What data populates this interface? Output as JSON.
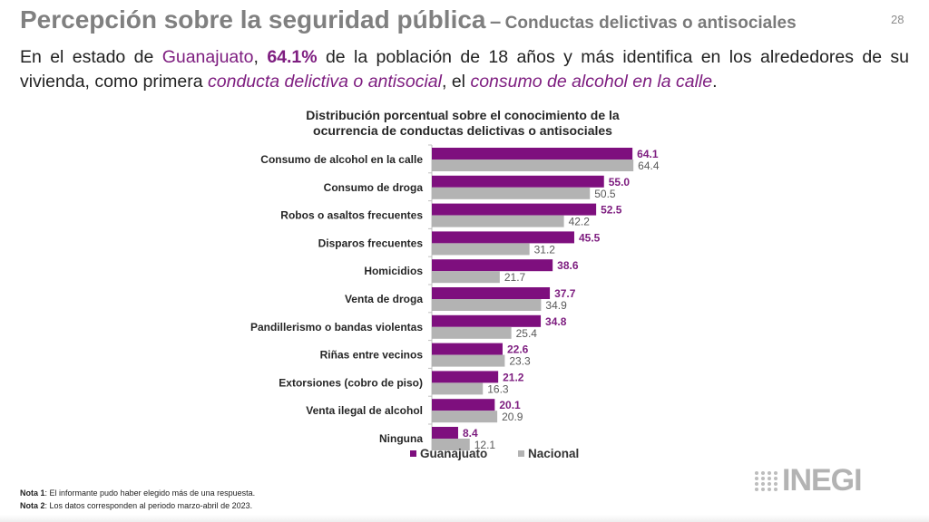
{
  "header": {
    "title": "Percepción sobre la seguridad pública",
    "separator": "–",
    "subtitle": "Conductas delictivas o antisociales",
    "page_number": "28"
  },
  "lead": {
    "p1": "En el estado de ",
    "state": "Guanajuato",
    "p2": ", ",
    "percent": "64.1%",
    "p3": " de la población de 18 años y más identifica en los alrededores de su vivienda, como primera ",
    "concept": "conducta delictiva o antisocial",
    "p4": ", el ",
    "behavior": "consumo de alcohol en la calle",
    "p5": "."
  },
  "colors": {
    "guanajuato": "#7e0f7e",
    "nacional": "#b3b3b3",
    "guanajuato_label": "#7e1e80",
    "nacional_label": "#595959"
  },
  "chart_data": {
    "type": "bar",
    "orientation": "horizontal",
    "title": "Distribución porcentual sobre el conocimiento de la ocurrencia de conductas delictivas o antisociales",
    "xlabel": "",
    "ylabel": "",
    "xlim": [
      0,
      70
    ],
    "grid": false,
    "legend_position": "bottom",
    "categories": [
      "Consumo de alcohol en la calle",
      "Consumo de droga",
      "Robos o asaltos frecuentes",
      "Disparos frecuentes",
      "Homicidios",
      "Venta de droga",
      "Pandillerismo o bandas violentas",
      "Riñas entre vecinos",
      "Extorsiones (cobro de piso)",
      "Venta ilegal de alcohol",
      "Ninguna"
    ],
    "series": [
      {
        "name": "Guanajuato",
        "values": [
          64.1,
          55.0,
          52.5,
          45.5,
          38.6,
          37.7,
          34.8,
          22.6,
          21.2,
          20.1,
          8.4
        ]
      },
      {
        "name": "Nacional",
        "values": [
          64.4,
          50.5,
          42.2,
          31.2,
          21.7,
          34.9,
          25.4,
          23.3,
          16.3,
          20.9,
          12.1
        ]
      }
    ]
  },
  "notes": [
    {
      "label": "Nota 1",
      "text": ": El informante pudo haber elegido más de una respuesta."
    },
    {
      "label": "Nota 2",
      "text": ": Los datos corresponden al periodo marzo-abril de 2023."
    }
  ],
  "logo": {
    "text": "INEGI"
  }
}
